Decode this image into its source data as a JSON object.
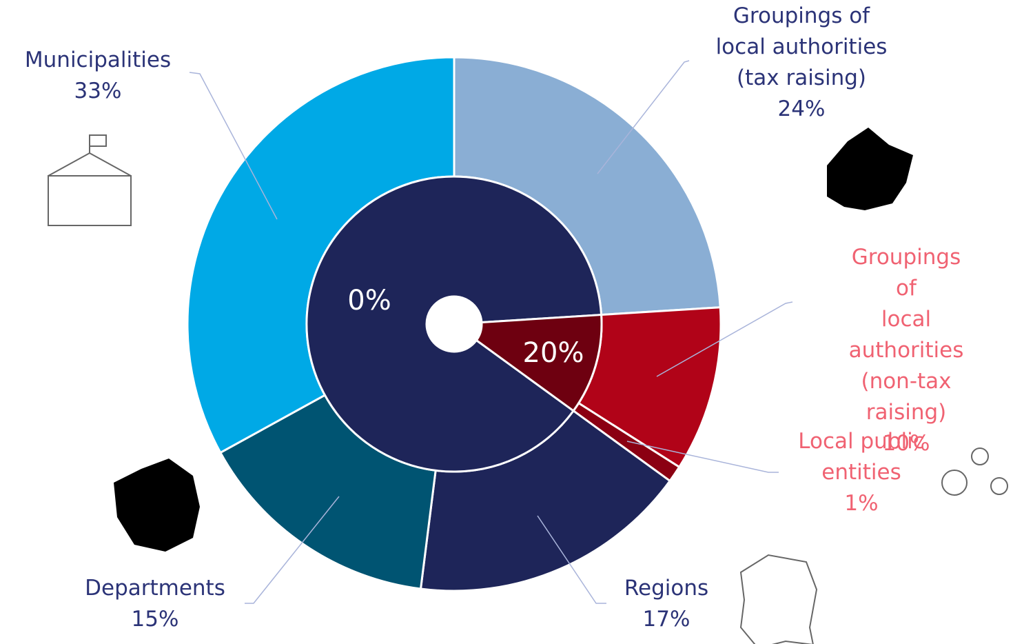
{
  "chart_data": {
    "type": "donut",
    "categories": [
      "Groupings of\nlocal authorities\n(tax raising)",
      "Groupings of\nlocal authorities\n(non-tax raising)",
      "Local public\nentities",
      "Regions",
      "Departments",
      "Municipalities"
    ],
    "values": [
      24,
      10,
      1,
      17,
      15,
      33
    ],
    "value_labels": [
      "24%",
      "10%",
      "1%",
      "17%",
      "15%",
      "33%"
    ],
    "colors": [
      "#8aaed4",
      "#b10318",
      "#8b0012",
      "#1e2559",
      "#005472",
      "#00a9e6"
    ],
    "label_colors": [
      "#2b3377",
      "#f06272",
      "#f06272",
      "#2b3377",
      "#2b3377",
      "#2b3377"
    ],
    "inner_labels": [
      "0%",
      "20%"
    ],
    "inner_colors": [
      "#1e2559",
      "#6e0010"
    ]
  }
}
